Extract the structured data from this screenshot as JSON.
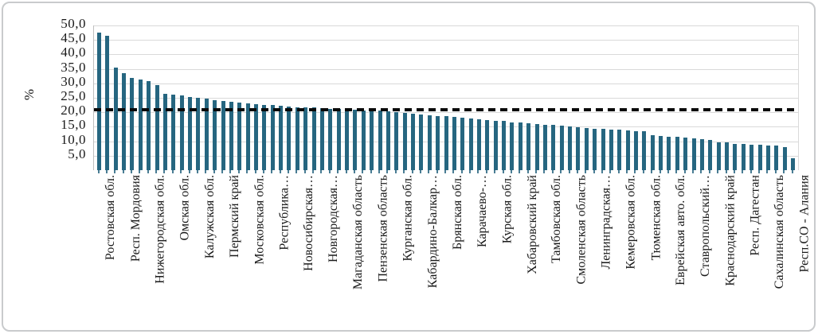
{
  "chart_data": {
    "type": "bar",
    "title": "",
    "xlabel": "",
    "ylabel": "%",
    "ylim": [
      0,
      50
    ],
    "grid": "horizontal",
    "legend": "none",
    "y_ticks": [
      "50,0",
      "45,0",
      "40,0",
      "35,0",
      "30,0",
      "25,0",
      "20,0",
      "15,0",
      "10,0",
      "5,0"
    ],
    "y_tick_values": [
      50,
      45,
      40,
      35,
      30,
      25,
      20,
      15,
      10,
      5
    ],
    "bar_color": "#266680",
    "gridline_color": "#d9d9d9",
    "axis_line_color": "#bfbfbf",
    "text_color": "#1a1a1a",
    "reference_line": {
      "value": 21,
      "style": "dashed",
      "color": "#0a0a0a"
    },
    "label_every_n_bars": 3,
    "category_labels": [
      "Ростовская обл.",
      "Респ. Мордовия",
      "Нижегородская обл.",
      "Омская обл.",
      "Калужская обл.",
      "Пермский край",
      "Московская обл.",
      "Республика…",
      "Новосибирская…",
      "Новгородская…",
      "Магаданская область",
      "Пензенская область",
      "Курганская обл.",
      "Кабардино-Балкар…",
      "Брянская обл.",
      "Карачаево-…",
      "Курская обл.",
      "Хабаровский край",
      "Тамбовская обл.",
      "Смоленская область",
      "Ленинградская…",
      "Кемеровская обл.",
      "Тюменская обл.",
      "Еврейская авто. обл.",
      "Ставропольский…",
      "Краснодарский край",
      "Респ. Дагестан",
      "Сахалинская область",
      "Респ.СО - Алания"
    ],
    "values": [
      47.5,
      46.3,
      35.5,
      33.6,
      32.0,
      31.3,
      30.7,
      29.5,
      26.4,
      26.2,
      25.9,
      25.2,
      24.9,
      24.6,
      24.3,
      23.9,
      23.6,
      23.3,
      23.0,
      22.8,
      22.6,
      22.4,
      22.2,
      22.0,
      21.8,
      21.7,
      21.6,
      21.4,
      21.2,
      21.1,
      20.9,
      20.8,
      20.7,
      20.6,
      20.5,
      20.4,
      20.0,
      19.7,
      19.4,
      19.2,
      19.0,
      18.8,
      18.6,
      18.3,
      18.0,
      17.8,
      17.5,
      17.3,
      17.1,
      16.9,
      16.6,
      16.4,
      16.2,
      16.0,
      15.8,
      15.6,
      15.3,
      15.1,
      14.9,
      14.7,
      14.4,
      14.2,
      14.1,
      14.0,
      13.8,
      13.6,
      13.4,
      12.0,
      11.9,
      11.6,
      11.5,
      11.3,
      11.0,
      10.7,
      10.5,
      9.7,
      9.5,
      9.2,
      9.0,
      8.9,
      8.8,
      8.6,
      8.5,
      7.9,
      4.0
    ]
  }
}
